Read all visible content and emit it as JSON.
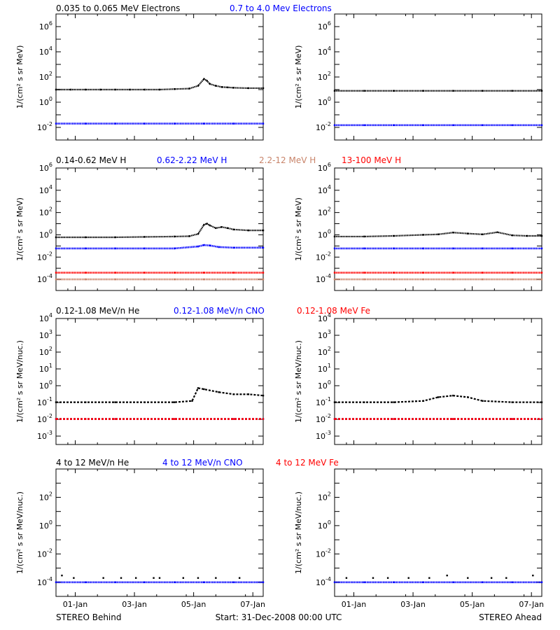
{
  "footer": {
    "left": "STEREO Behind",
    "center": "Start: 31-Dec-2008 00:00 UTC",
    "right": "STEREO Ahead"
  },
  "colors": {
    "black": "#000000",
    "blue": "#0000ff",
    "tan": "#c8846a",
    "red": "#ff0000"
  },
  "x_axis": {
    "range_days": [
      0,
      7
    ],
    "ticks": [
      1,
      3,
      5,
      7
    ],
    "tick_labels": [
      "01-Jan",
      "03-Jan",
      "05-Jan",
      "07-Jan"
    ]
  },
  "rows": [
    {
      "legend": [
        {
          "text": "0.035 to 0.065 MeV Electrons",
          "color": "#000000"
        },
        {
          "text": "0.7 to 4.0 Mev Electrons",
          "color": "#0000ff"
        }
      ],
      "ylabel": "1/(cm² s sr MeV)",
      "ylog_range": [
        -3,
        7
      ],
      "yticks": [
        {
          "exp": 6,
          "label_base": "10",
          "label_exp": "6"
        },
        {
          "exp": 4,
          "label_base": "10",
          "label_exp": "4"
        },
        {
          "exp": 2,
          "label_base": "10",
          "label_exp": "2"
        },
        {
          "exp": 0,
          "label_base": "10",
          "label_exp": "0"
        },
        {
          "exp": -2,
          "label_base": "10",
          "label_exp": "-2"
        }
      ]
    },
    {
      "legend": [
        {
          "text": "0.14-0.62 MeV H",
          "color": "#000000"
        },
        {
          "text": "0.62-2.22 MeV H",
          "color": "#0000ff"
        },
        {
          "text": "2.2-12 MeV H",
          "color": "#c8846a"
        },
        {
          "text": "13-100 MeV H",
          "color": "#ff0000"
        }
      ],
      "ylabel": "1/(cm² s sr MeV)",
      "ylog_range": [
        -5,
        6
      ],
      "yticks": [
        {
          "exp": 6,
          "label_base": "10",
          "label_exp": "6"
        },
        {
          "exp": 4,
          "label_base": "10",
          "label_exp": "4"
        },
        {
          "exp": 2,
          "label_base": "10",
          "label_exp": "2"
        },
        {
          "exp": 0,
          "label_base": "10",
          "label_exp": "0"
        },
        {
          "exp": -2,
          "label_base": "10",
          "label_exp": "-2"
        },
        {
          "exp": -4,
          "label_base": "10",
          "label_exp": "-4"
        }
      ]
    },
    {
      "legend": [
        {
          "text": "0.12-1.08 MeV/n He",
          "color": "#000000"
        },
        {
          "text": "0.12-1.08 MeV/n CNO",
          "color": "#0000ff"
        },
        {
          "text": "0.12-1.08 MeV Fe",
          "color": "#ff0000"
        }
      ],
      "ylabel": "1/(cm² s sr MeV/nuc.)",
      "ylog_range": [
        -3.5,
        4
      ],
      "yticks": [
        {
          "exp": 4,
          "label_base": "10",
          "label_exp": "4"
        },
        {
          "exp": 3,
          "label_base": "10",
          "label_exp": "3"
        },
        {
          "exp": 2,
          "label_base": "10",
          "label_exp": "2"
        },
        {
          "exp": 1,
          "label_base": "10",
          "label_exp": "1"
        },
        {
          "exp": 0,
          "label_base": "10",
          "label_exp": "0"
        },
        {
          "exp": -1,
          "label_base": "10",
          "label_exp": "-1"
        },
        {
          "exp": -2,
          "label_base": "10",
          "label_exp": "-2"
        },
        {
          "exp": -3,
          "label_base": "10",
          "label_exp": "-3"
        }
      ]
    },
    {
      "legend": [
        {
          "text": "4 to 12 MeV/n He",
          "color": "#000000"
        },
        {
          "text": "4 to 12 MeV/n CNO",
          "color": "#0000ff"
        },
        {
          "text": "4 to 12 MeV Fe",
          "color": "#ff0000"
        }
      ],
      "ylabel": "1/(cm² s sr MeV/nuc.)",
      "ylog_range": [
        -5,
        4
      ],
      "yticks": [
        {
          "exp": 2,
          "label_base": "10",
          "label_exp": "2"
        },
        {
          "exp": 0,
          "label_base": "10",
          "label_exp": "0"
        },
        {
          "exp": -2,
          "label_base": "10",
          "label_exp": "-2"
        },
        {
          "exp": -4,
          "label_base": "10",
          "label_exp": "-4"
        }
      ]
    }
  ],
  "chart_data": [
    {
      "type": "scatter",
      "panel": "electrons-behind",
      "xlim": [
        0,
        7
      ],
      "ylim": [
        0.001,
        10000000
      ],
      "yscale": "log",
      "series": [
        {
          "name": "0.035 to 0.065 MeV Electrons",
          "color": "#000000",
          "x": [
            0,
            0.5,
            1,
            1.5,
            2,
            2.5,
            3,
            3.5,
            4,
            4.5,
            4.8,
            5.0,
            5.1,
            5.2,
            5.4,
            5.6,
            5.8,
            6,
            6.5,
            7
          ],
          "y": [
            10,
            10,
            10,
            10,
            10,
            10,
            10,
            10,
            11,
            12,
            20,
            70,
            50,
            28,
            20,
            16,
            15,
            14,
            13,
            13
          ]
        },
        {
          "name": "0.7 to 4.0 Mev Electrons",
          "color": "#0000ff",
          "x": [
            0,
            1,
            2,
            3,
            4,
            5,
            6,
            7
          ],
          "y": [
            0.02,
            0.02,
            0.02,
            0.02,
            0.02,
            0.02,
            0.02,
            0.02
          ]
        }
      ]
    },
    {
      "type": "scatter",
      "panel": "electrons-ahead",
      "xlim": [
        0,
        7
      ],
      "ylim": [
        0.001,
        10000000
      ],
      "yscale": "log",
      "series": [
        {
          "name": "0.035 to 0.065 MeV Electrons",
          "color": "#000000",
          "x": [
            0,
            1,
            2,
            3,
            4,
            5,
            6,
            7
          ],
          "y": [
            8,
            8,
            8,
            8,
            8,
            8,
            8,
            8
          ]
        },
        {
          "name": "0.7 to 4.0 Mev Electrons",
          "color": "#0000ff",
          "x": [
            0,
            1,
            2,
            3,
            4,
            5,
            6,
            7
          ],
          "y": [
            0.015,
            0.015,
            0.015,
            0.015,
            0.015,
            0.015,
            0.015,
            0.015
          ]
        }
      ]
    },
    {
      "type": "scatter",
      "panel": "protons-behind",
      "xlim": [
        0,
        7
      ],
      "ylim": [
        1e-05,
        1000000
      ],
      "yscale": "log",
      "series": [
        {
          "name": "0.14-0.62 MeV H",
          "color": "#000000",
          "x": [
            0,
            1,
            2,
            3,
            4,
            4.5,
            4.8,
            5.0,
            5.1,
            5.2,
            5.4,
            5.6,
            5.8,
            6,
            6.5,
            7
          ],
          "y": [
            0.6,
            0.6,
            0.6,
            0.65,
            0.7,
            0.75,
            1.2,
            8,
            10,
            7,
            4,
            5,
            4,
            3,
            2.5,
            2.5
          ]
        },
        {
          "name": "0.62-2.22 MeV H",
          "color": "#0000ff",
          "x": [
            0,
            1,
            2,
            3,
            4,
            4.8,
            5.0,
            5.2,
            5.5,
            6,
            7
          ],
          "y": [
            0.06,
            0.06,
            0.06,
            0.06,
            0.06,
            0.09,
            0.12,
            0.11,
            0.08,
            0.07,
            0.07
          ]
        },
        {
          "name": "2.2-12 MeV H",
          "color": "#c8846a",
          "x": [
            0,
            1,
            2,
            3,
            4,
            5,
            6,
            7
          ],
          "y": [
            0.0001,
            0.0001,
            0.0001,
            0.0001,
            0.0001,
            0.0001,
            0.0001,
            0.0001
          ]
        },
        {
          "name": "13-100 MeV H",
          "color": "#ff0000",
          "x": [
            0,
            1,
            2,
            3,
            4,
            5,
            6,
            7
          ],
          "y": [
            0.0004,
            0.0004,
            0.0004,
            0.0004,
            0.0004,
            0.0004,
            0.0004,
            0.0004
          ]
        }
      ]
    },
    {
      "type": "scatter",
      "panel": "protons-ahead",
      "xlim": [
        0,
        7
      ],
      "ylim": [
        1e-05,
        1000000
      ],
      "yscale": "log",
      "series": [
        {
          "name": "0.14-0.62 MeV H",
          "color": "#000000",
          "x": [
            0,
            1,
            2,
            3,
            3.5,
            4,
            4.5,
            5,
            5.5,
            6,
            6.5,
            7
          ],
          "y": [
            0.7,
            0.7,
            0.8,
            1.0,
            1.1,
            1.6,
            1.3,
            1.1,
            1.7,
            0.9,
            0.8,
            0.8
          ]
        },
        {
          "name": "0.62-2.22 MeV H",
          "color": "#0000ff",
          "x": [
            0,
            1,
            2,
            3,
            4,
            5,
            6,
            7
          ],
          "y": [
            0.06,
            0.06,
            0.06,
            0.06,
            0.06,
            0.06,
            0.06,
            0.06
          ]
        },
        {
          "name": "2.2-12 MeV H",
          "color": "#c8846a",
          "x": [
            0,
            1,
            2,
            3,
            4,
            5,
            6,
            7
          ],
          "y": [
            0.0001,
            0.0001,
            0.0001,
            0.0001,
            0.0001,
            0.0001,
            0.0001,
            0.0001
          ]
        },
        {
          "name": "13-100 MeV H",
          "color": "#ff0000",
          "x": [
            0,
            1,
            2,
            3,
            4,
            5,
            6,
            7
          ],
          "y": [
            0.0004,
            0.0004,
            0.0004,
            0.0004,
            0.0004,
            0.0004,
            0.0004,
            0.0004
          ]
        }
      ]
    },
    {
      "type": "scatter",
      "panel": "suprathermal-behind",
      "xlim": [
        0,
        7
      ],
      "ylim": [
        0.0003,
        10000
      ],
      "yscale": "log",
      "series": [
        {
          "name": "0.12-1.08 MeV/n He",
          "color": "#000000",
          "x": [
            0,
            1,
            2,
            3,
            4,
            4.6,
            4.8,
            5,
            5.5,
            6,
            6.5,
            7
          ],
          "y": [
            0.1,
            0.1,
            0.1,
            0.1,
            0.1,
            0.12,
            0.7,
            0.6,
            0.4,
            0.3,
            0.3,
            0.25
          ]
        },
        {
          "name": "0.12-1.08 MeV/n CNO",
          "color": "#0000ff",
          "x": [
            0,
            1,
            2,
            3,
            4,
            5,
            6,
            7
          ],
          "y": [
            0.01,
            0.01,
            0.01,
            0.01,
            0.01,
            0.01,
            0.01,
            0.01
          ]
        },
        {
          "name": "0.12-1.08 MeV Fe",
          "color": "#ff0000",
          "x": [
            0,
            1,
            2,
            3,
            4,
            5,
            6,
            7
          ],
          "y": [
            0.01,
            0.01,
            0.01,
            0.01,
            0.01,
            0.01,
            0.01,
            0.01
          ]
        }
      ]
    },
    {
      "type": "scatter",
      "panel": "suprathermal-ahead",
      "xlim": [
        0,
        7
      ],
      "ylim": [
        0.0003,
        10000
      ],
      "yscale": "log",
      "series": [
        {
          "name": "0.12-1.08 MeV/n He",
          "color": "#000000",
          "x": [
            0,
            1,
            2,
            3,
            3.5,
            4,
            4.5,
            5,
            6,
            7
          ],
          "y": [
            0.1,
            0.1,
            0.1,
            0.12,
            0.2,
            0.25,
            0.2,
            0.12,
            0.1,
            0.1
          ]
        },
        {
          "name": "0.12-1.08 MeV/n CNO",
          "color": "#0000ff",
          "x": [
            0,
            1,
            2,
            3,
            4,
            5,
            6,
            7
          ],
          "y": [
            0.01,
            0.01,
            0.01,
            0.01,
            0.01,
            0.01,
            0.01,
            0.01
          ]
        },
        {
          "name": "0.12-1.08 MeV Fe",
          "color": "#ff0000",
          "x": [
            0,
            1,
            2,
            3,
            4,
            5,
            6,
            7
          ],
          "y": [
            0.01,
            0.01,
            0.01,
            0.01,
            0.01,
            0.01,
            0.01,
            0.01
          ]
        }
      ]
    },
    {
      "type": "scatter",
      "panel": "heavy-behind",
      "xlim": [
        0,
        7
      ],
      "ylim": [
        1e-05,
        10000
      ],
      "yscale": "log",
      "series": [
        {
          "name": "4 to 12 MeV/n He",
          "color": "#000000",
          "x": [
            0.2,
            0.6,
            1.6,
            2.2,
            2.7,
            3.3,
            3.5,
            4.3,
            4.8,
            5.4,
            6.2
          ],
          "y": [
            0.0003,
            0.0002,
            0.0002,
            0.0002,
            0.0002,
            0.0002,
            0.0002,
            0.0002,
            0.0002,
            0.0002,
            0.0002
          ]
        },
        {
          "name": "4 to 12 MeV/n CNO",
          "color": "#0000ff",
          "x": [
            0,
            1,
            2,
            3,
            4,
            5,
            6,
            7
          ],
          "y": [
            0.0001,
            0.0001,
            0.0001,
            0.0001,
            0.0001,
            0.0001,
            0.0001,
            0.0001
          ]
        }
      ]
    },
    {
      "type": "scatter",
      "panel": "heavy-ahead",
      "xlim": [
        0,
        7
      ],
      "ylim": [
        1e-05,
        10000
      ],
      "yscale": "log",
      "series": [
        {
          "name": "4 to 12 MeV/n He",
          "color": "#000000",
          "x": [
            0.4,
            1.3,
            1.8,
            2.5,
            3.2,
            3.8,
            4.5,
            5.3,
            5.8,
            6.7
          ],
          "y": [
            0.0002,
            0.0002,
            0.0002,
            0.0002,
            0.0002,
            0.0003,
            0.0002,
            0.0002,
            0.0002,
            0.0003
          ]
        },
        {
          "name": "4 to 12 MeV/n CNO",
          "color": "#0000ff",
          "x": [
            0,
            1,
            2,
            3,
            4,
            5,
            6,
            7
          ],
          "y": [
            0.0001,
            0.0001,
            0.0001,
            0.0001,
            0.0001,
            0.0001,
            0.0001,
            0.0001
          ]
        }
      ]
    }
  ]
}
